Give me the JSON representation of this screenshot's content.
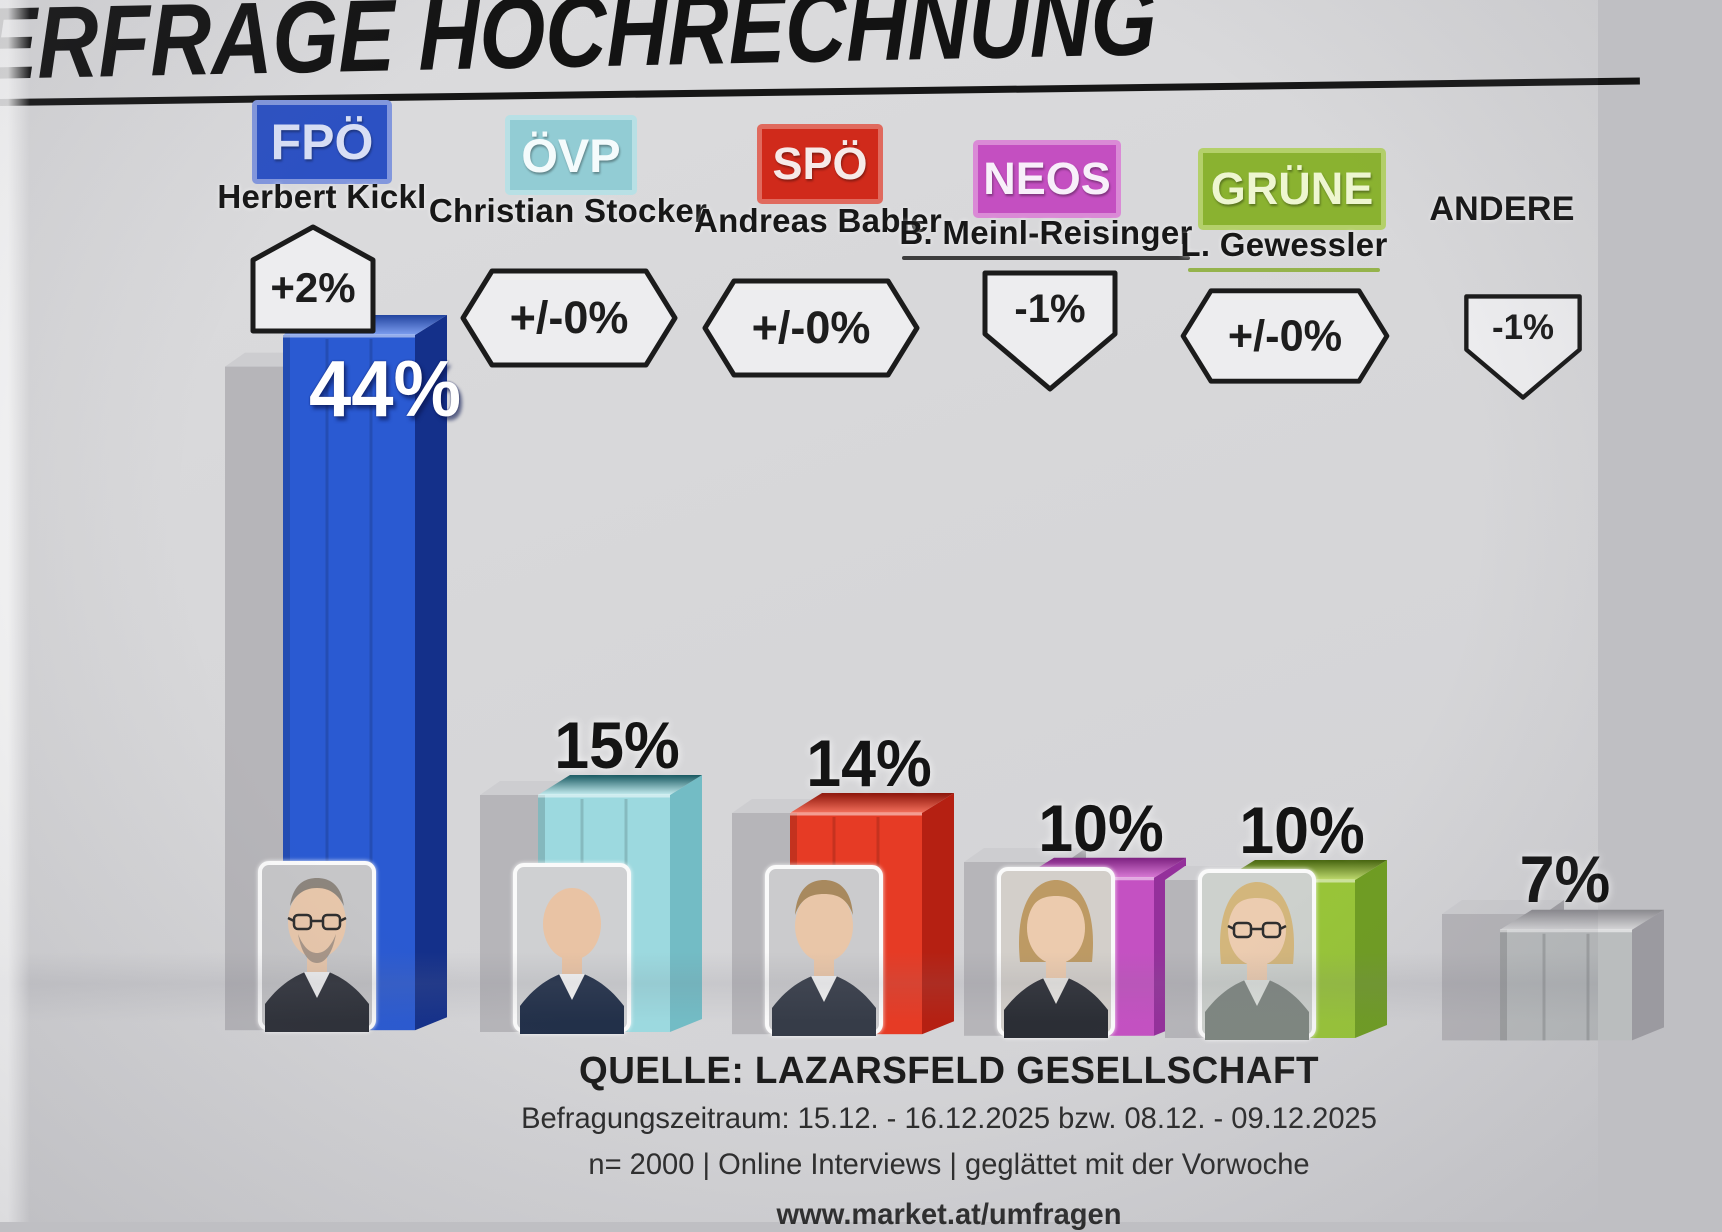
{
  "title": "ERFRAGE HOCHRECHNUNG",
  "background_color": "#d7d7d9",
  "divider_color": "#161616",
  "footer": {
    "source": "QUELLE: LAZARSFELD GESELLSCHAFT",
    "survey_period": "Befragungszeitraum:  15.12. - 16.12.2025  bzw. 08.12. - 09.12.2025",
    "methodology": "n= 2000 | Online Interviews | geglättet mit der Vorwoche",
    "website_partial": "www.market.at/umfragen"
  },
  "chart_data": {
    "type": "bar",
    "title": "ERFRAGE HOCHRECHNUNG",
    "unit": "%",
    "categories": [
      "FPÖ",
      "ÖVP",
      "SPÖ",
      "NEOS",
      "GRÜNE",
      "ANDERE"
    ],
    "values": [
      44,
      15,
      14,
      10,
      10,
      7
    ],
    "changes": [
      "+2%",
      "+/-0%",
      "+/-0%",
      "-1%",
      "+/-0%",
      "-1%"
    ],
    "previous_week_values": [
      42,
      15,
      14,
      11,
      10,
      8
    ],
    "leaders": [
      "Herbert Kickl",
      "Christian Stocker",
      "Andreas Babler",
      "B. Meinl-Reisinger",
      "L. Gewessler",
      ""
    ],
    "ylim": [
      0,
      50
    ],
    "grid": false,
    "legend": "none",
    "source": "QUELLE: LAZARSFELD GESELLSCHAFT"
  },
  "parties": [
    {
      "id": "fpoe",
      "name": "FPÖ",
      "leader": "Herbert Kickl",
      "value": 44,
      "value_label": "44%",
      "previous": 42,
      "change": {
        "label": "+2%",
        "shape": "up"
      },
      "badge": {
        "bg": "#2c51c3",
        "border": "#8297dd",
        "text_color": "#d8dff5"
      },
      "bar": {
        "front": "#2a5ad2",
        "side": "#14308a",
        "top_front": "#7e9ff0",
        "top_back": "#22449f"
      },
      "leader_underline": null,
      "avatar": {
        "style": "balding",
        "glasses": true,
        "beard": true,
        "skin": "#e8c7ab",
        "hair": "#857d74",
        "suit": "#2c2f37",
        "shirt": "#f3f3f3",
        "bg": "#c6c6c8"
      }
    },
    {
      "id": "oevp",
      "name": "ÖVP",
      "leader": "Christian Stocker",
      "value": 15,
      "value_label": "15%",
      "previous": 15,
      "change": {
        "label": "+/-0%",
        "shape": "hex"
      },
      "badge": {
        "bg": "#92ccd4",
        "border": "#b8e0e5",
        "text_color": "#f4fbfc"
      },
      "bar": {
        "front": "#9cd9df",
        "side": "#73bcc5",
        "top_front": "#c6eef1",
        "top_back": "#175860"
      },
      "leader_underline": null,
      "avatar": {
        "style": "bald",
        "glasses": false,
        "beard": false,
        "skin": "#e9c3a4",
        "hair": "#b9a68f",
        "suit": "#223049",
        "shirt": "#f5f5f5",
        "bg": "#cfd0d2"
      }
    },
    {
      "id": "spoe",
      "name": "SPÖ",
      "leader": "Andreas Babler",
      "value": 14,
      "value_label": "14%",
      "previous": 14,
      "change": {
        "label": "+/-0%",
        "shape": "hex"
      },
      "badge": {
        "bg": "#d02a1b",
        "border": "#e06a5e",
        "text_color": "#f6eae8"
      },
      "bar": {
        "front": "#e63b25",
        "side": "#b52012",
        "top_front": "#f4705c",
        "top_back": "#8c150a"
      },
      "leader_underline": null,
      "avatar": {
        "style": "short",
        "glasses": false,
        "beard": false,
        "skin": "#e9c6a8",
        "hair": "#a8895e",
        "suit": "#363c48",
        "shirt": "#f2f2f2",
        "bg": "#cbcbcd"
      }
    },
    {
      "id": "neos",
      "name": "NEOS",
      "leader": "B. Meinl-Reisinger",
      "value": 10,
      "value_label": "10%",
      "previous": 11,
      "change": {
        "label": "-1%",
        "shape": "down"
      },
      "badge": {
        "bg": "#c44fc1",
        "border": "#da8ad6",
        "text_color": "#f8effa"
      },
      "bar": {
        "front": "#c451c2",
        "side": "#94309b",
        "top_front": "#da7ad6",
        "top_back": "#7c2180"
      },
      "leader_underline": "#3c3c3c",
      "avatar": {
        "style": "bob",
        "glasses": false,
        "beard": false,
        "skin": "#eccbae",
        "hair": "#bd9a64",
        "suit": "#2b2e35",
        "shirt": "#e8e6e2",
        "bg": "#d3cfca"
      }
    },
    {
      "id": "gruene",
      "name": "GRÜNE",
      "leader": "L. Gewessler",
      "value": 10,
      "value_label": "10%",
      "previous": 10,
      "change": {
        "label": "+/-0%",
        "shape": "hex"
      },
      "badge": {
        "bg": "#8ab230",
        "border": "#b4d06a",
        "text_color": "#eef6d0"
      },
      "bar": {
        "front": "#98c538",
        "side": "#6f9d22",
        "top_front": "#c0dc6e",
        "top_back": "#46640f"
      },
      "leader_underline": "#95b34c",
      "avatar": {
        "style": "bob",
        "glasses": true,
        "beard": false,
        "skin": "#ecccb0",
        "hair": "#d3b67c",
        "suit": "#7f8781",
        "shirt": "#dfe3de",
        "bg": "#cdd1cd"
      }
    },
    {
      "id": "andere",
      "name": "ANDERE",
      "leader": "",
      "value": 7,
      "value_label": "7%",
      "previous": 8,
      "change": {
        "label": "-1%",
        "shape": "down"
      },
      "badge": null,
      "bar": {
        "front": "#babdbe",
        "side": "#9b9aa0",
        "top_front": "#d6d6d8",
        "top_back": "#8a898e"
      },
      "leader_underline": null,
      "avatar": null
    }
  ]
}
